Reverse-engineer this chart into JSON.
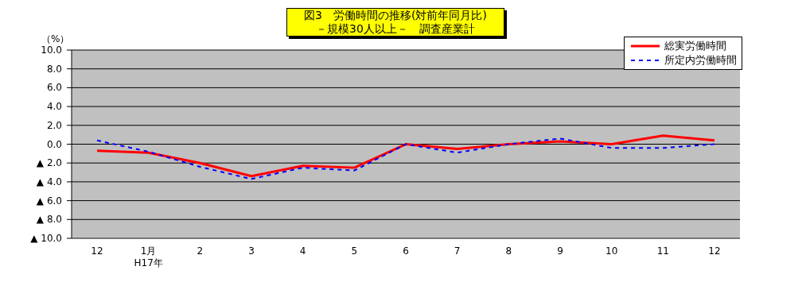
{
  "chart_data": {
    "type": "line",
    "title": "図3　労働時間の推移(対前年同月比)",
    "subtitle": "－規模30人以上－　調査産業計",
    "ylabel": "（%）",
    "categories": [
      "12",
      "1月\nH17年",
      "2",
      "3",
      "4",
      "5",
      "6",
      "7",
      "8",
      "9",
      "10",
      "11",
      "12"
    ],
    "series": [
      {
        "name": "総実労働時間",
        "color": "#ff0000",
        "line_style": "solid",
        "values": [
          -0.7,
          -0.9,
          -2.0,
          -3.4,
          -2.3,
          -2.5,
          0.0,
          -0.5,
          0.0,
          0.3,
          0.0,
          0.9,
          0.4
        ]
      },
      {
        "name": "所定内労働時間",
        "color": "#0000ff",
        "line_style": "dashed",
        "values": [
          0.4,
          -0.8,
          -2.4,
          -3.7,
          -2.5,
          -2.8,
          0.0,
          -0.9,
          0.0,
          0.6,
          -0.4,
          -0.4,
          0.0
        ]
      }
    ],
    "ylim": [
      -10,
      10
    ],
    "yticks": [
      {
        "value": 10,
        "label": "10.0"
      },
      {
        "value": 8,
        "label": "8.0"
      },
      {
        "value": 6,
        "label": "6.0"
      },
      {
        "value": 4,
        "label": "4.0"
      },
      {
        "value": 2,
        "label": "2.0"
      },
      {
        "value": 0,
        "label": "0.0"
      },
      {
        "value": -2,
        "label": "▲ 2.0"
      },
      {
        "value": -4,
        "label": "▲ 4.0"
      },
      {
        "value": -6,
        "label": "▲ 6.0"
      },
      {
        "value": -8,
        "label": "▲ 8.0"
      },
      {
        "value": -10,
        "label": "▲ 10.0"
      }
    ],
    "grid": "y",
    "legend": "top right",
    "marker": "none"
  }
}
